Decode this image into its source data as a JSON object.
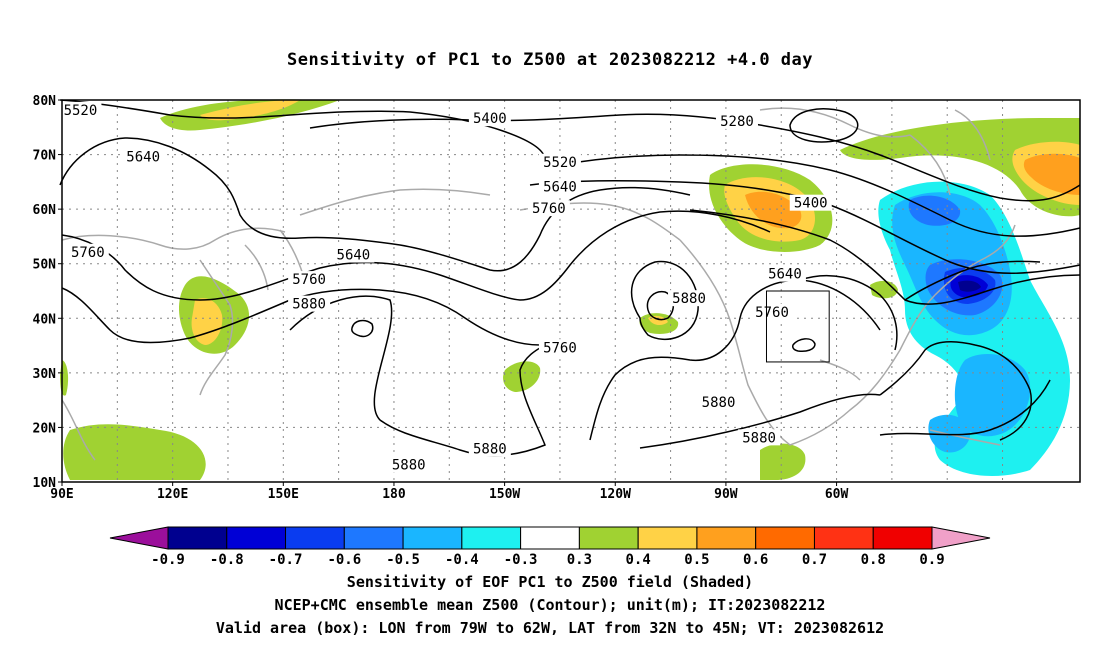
{
  "title": "Sensitivity of PC1 to Z500 at 2023082212 +4.0 day",
  "map": {
    "lat_labels": [
      "80N",
      "70N",
      "60N",
      "50N",
      "40N",
      "30N",
      "20N",
      "10N"
    ],
    "lon_labels": [
      "90E",
      "120E",
      "150E",
      "180",
      "150W",
      "120W",
      "90W",
      "60W"
    ],
    "contour_labels": [
      {
        "text": "5520",
        "x_lon": 95,
        "y_lat": 78
      },
      {
        "text": "5640",
        "x_lon": 112,
        "y_lat": 69.5
      },
      {
        "text": "5760",
        "x_lon": 97,
        "y_lat": 52
      },
      {
        "text": "5640",
        "x_lon": 169,
        "y_lat": 51.5
      },
      {
        "text": "5760",
        "x_lon": 157,
        "y_lat": 47
      },
      {
        "text": "5880",
        "x_lon": 157,
        "y_lat": 42.5
      },
      {
        "text": "5400",
        "x_lon": -154,
        "y_lat": 76.5
      },
      {
        "text": "5520",
        "x_lon": -135,
        "y_lat": 68.5
      },
      {
        "text": "5640",
        "x_lon": -135,
        "y_lat": 64
      },
      {
        "text": "5760",
        "x_lon": -138,
        "y_lat": 60
      },
      {
        "text": "5760",
        "x_lon": -135,
        "y_lat": 34.5
      },
      {
        "text": "5880",
        "x_lon": -100,
        "y_lat": 43.5
      },
      {
        "text": "5280",
        "x_lon": -87,
        "y_lat": 76
      },
      {
        "text": "5400",
        "x_lon": -67,
        "y_lat": 61
      },
      {
        "text": "5640",
        "x_lon": -74,
        "y_lat": 48
      },
      {
        "text": "5760",
        "x_lon": -77.5,
        "y_lat": 41
      },
      {
        "text": "5880",
        "x_lon": -92,
        "y_lat": 24.5
      },
      {
        "text": "5880",
        "x_lon": -81,
        "y_lat": 18
      },
      {
        "text": "5880",
        "x_lon": -176,
        "y_lat": 13
      },
      {
        "text": "5880",
        "x_lon": -154,
        "y_lat": 16
      }
    ],
    "box": {
      "lon_from": -79,
      "lon_to": -62,
      "lat_from": 32,
      "lat_to": 45
    }
  },
  "colorbar": {
    "labels": [
      "-0.9",
      "-0.8",
      "-0.7",
      "-0.6",
      "-0.5",
      "-0.4",
      "-0.3",
      "0.3",
      "0.4",
      "0.5",
      "0.6",
      "0.7",
      "0.8",
      "0.9"
    ],
    "colors": [
      "#9b0f9b",
      "#00008f",
      "#0000d6",
      "#0a3cf0",
      "#1e78ff",
      "#1ab6ff",
      "#1ef0f0",
      "#ffffff",
      "#a0d232",
      "#ffd246",
      "#ffa01e",
      "#ff6a00",
      "#ff3214",
      "#f00000",
      "#f0a0c8"
    ]
  },
  "footer": {
    "line1": "Sensitivity of EOF PC1 to Z500 field (Shaded)",
    "line2": "NCEP+CMC ensemble mean Z500 (Contour); unit(m); IT:2023082212",
    "line3": "Valid area (box): LON from 79W to 62W, LAT from 32N to 45N; VT: 2023082612"
  }
}
